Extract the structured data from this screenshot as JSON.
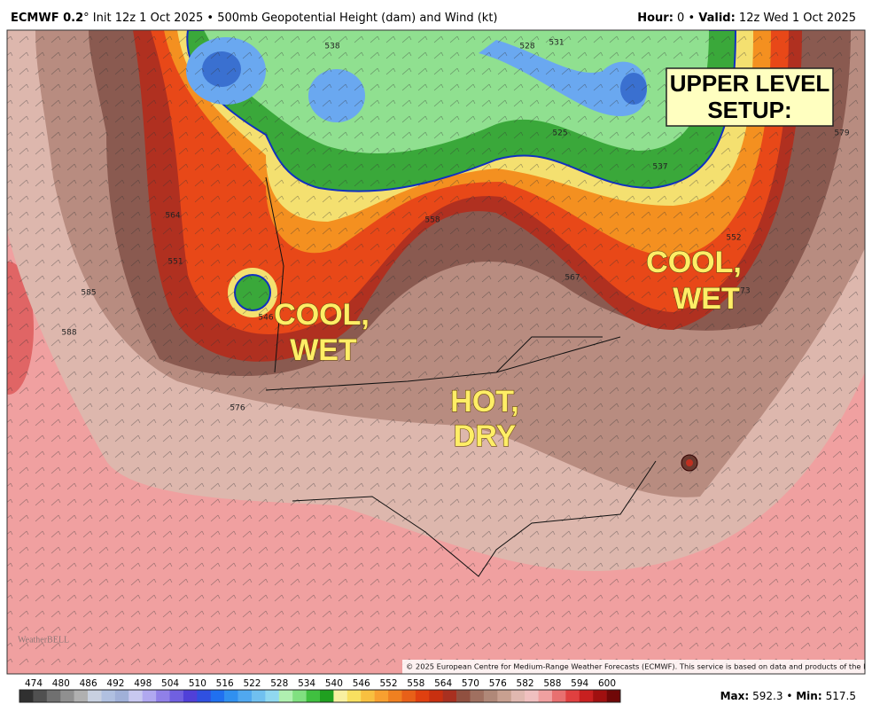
{
  "header": {
    "model": "ECMWF 0.2",
    "left_rest": "° Init 12z 1 Oct 2025 • 500mb Geopotential Height (dam) and Wind (kt)",
    "hour_label": "Hour:",
    "hour_value": " 0 • ",
    "valid_label": "Valid:",
    "valid_value": " 12z Wed 1 Oct 2025"
  },
  "annotations": {
    "setup": [
      "UPPER LEVEL",
      "SETUP:"
    ],
    "west": [
      "COOL,",
      "WET"
    ],
    "east": [
      "COOL,",
      "WET"
    ],
    "center": [
      "HOT,",
      "DRY"
    ]
  },
  "contour_labels": [
    "538",
    "531",
    "528",
    "537",
    "525",
    "564",
    "551",
    "552",
    "546",
    "558",
    "567",
    "573",
    "576",
    "585",
    "588",
    "579"
  ],
  "copyright": "© 2025 European Centre for Medium-Range Weather Forecasts (ECMWF). This service is based on data and products of the ECMWF.",
  "watermark": "WeatherBELL",
  "colorbar_labels": [
    474,
    480,
    486,
    492,
    498,
    504,
    510,
    516,
    522,
    528,
    534,
    540,
    546,
    552,
    558,
    564,
    570,
    576,
    582,
    588,
    594,
    600
  ],
  "stats": {
    "max_label": "Max:",
    "max_value": "592.3",
    "sep": " • ",
    "min_label": "Min:",
    "min_value": "517.5"
  }
}
